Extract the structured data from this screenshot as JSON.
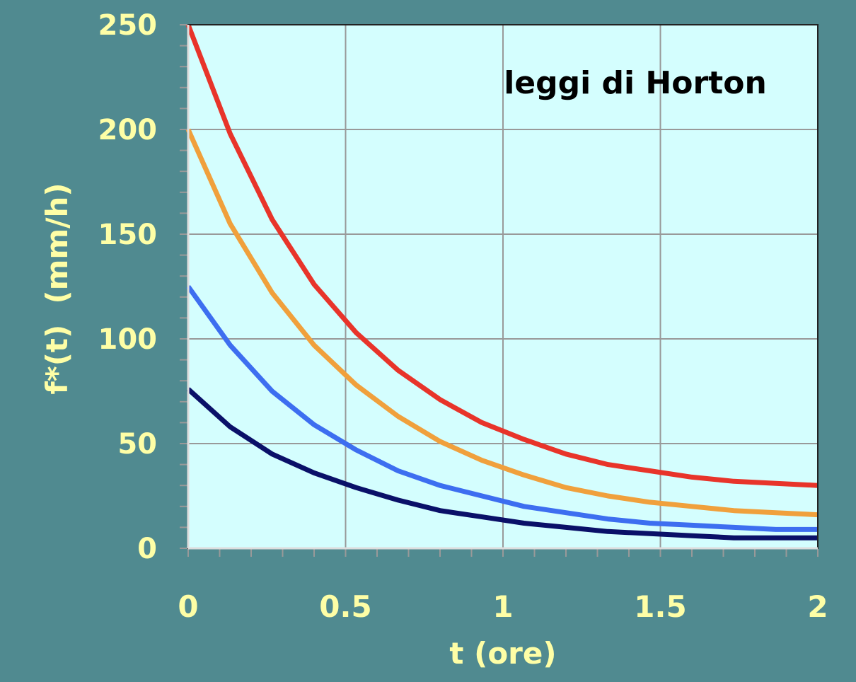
{
  "chart_data": {
    "type": "line",
    "title": "leggi di Horton",
    "xlabel": "t (ore)",
    "ylabel": "f*(t)  (mm/h)",
    "xlim": [
      0,
      2
    ],
    "ylim": [
      0,
      250
    ],
    "x_ticks": [
      "0",
      "0.5",
      "1",
      "1.5",
      "2"
    ],
    "x_tick_values": [
      0,
      0.5,
      1,
      1.5,
      2
    ],
    "y_ticks": [
      "0",
      "50",
      "100",
      "150",
      "200",
      "250"
    ],
    "y_tick_values": [
      0,
      50,
      100,
      150,
      200,
      250
    ],
    "grid": true,
    "legend": "none",
    "x": [
      0,
      0.1333,
      0.2667,
      0.4,
      0.5333,
      0.6667,
      0.8,
      0.9333,
      1.0667,
      1.2,
      1.3333,
      1.4667,
      1.6,
      1.7333,
      1.8667,
      2.0
    ],
    "series": [
      {
        "color": "#e8342a",
        "values": [
          250,
          198,
          157,
          126,
          103,
          85,
          71,
          60,
          52,
          45,
          40,
          37,
          34,
          32,
          31,
          30
        ]
      },
      {
        "color": "#f0a03c",
        "values": [
          200,
          155,
          122,
          97,
          78,
          63,
          51,
          42,
          35,
          29,
          25,
          22,
          20,
          18,
          17,
          16
        ]
      },
      {
        "color": "#3d6ef0",
        "values": [
          125,
          97,
          75,
          59,
          47,
          37,
          30,
          25,
          20,
          17,
          14,
          12,
          11,
          10,
          9,
          9
        ]
      },
      {
        "color": "#0a1068",
        "values": [
          76,
          58,
          45,
          36,
          29,
          23,
          18,
          15,
          12,
          10,
          8,
          7,
          6,
          5,
          5,
          5
        ]
      }
    ],
    "colors": {
      "background": "#508a90",
      "plot_area": "#d4fefe",
      "grid": "#999999",
      "tick_labels": "#fefea6",
      "title": "#000000"
    }
  }
}
